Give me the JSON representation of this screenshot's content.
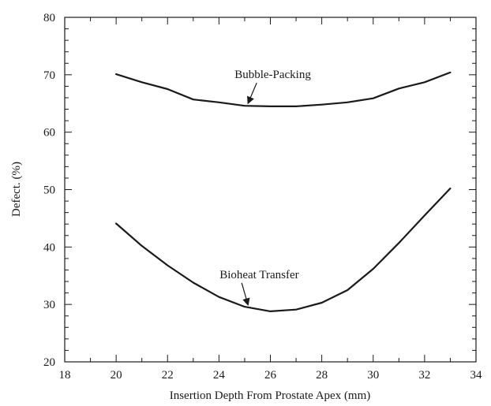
{
  "chart_data": {
    "type": "line",
    "title": "",
    "xlabel": "Insertion Depth From Prostate Apex (mm)",
    "ylabel": "Defect. (%)",
    "xlim": [
      18,
      34
    ],
    "ylim": [
      20,
      80
    ],
    "xticks": [
      18,
      20,
      22,
      24,
      26,
      28,
      30,
      32,
      34
    ],
    "yticks": [
      20,
      30,
      40,
      50,
      60,
      70,
      80
    ],
    "grid": false,
    "legend": "none",
    "series": [
      {
        "name": "Bubble-Packing",
        "x": [
          20,
          21,
          22,
          23,
          24,
          25,
          26,
          27,
          28,
          29,
          30,
          31,
          32,
          33
        ],
        "y": [
          70.1,
          68.7,
          67.5,
          65.7,
          65.2,
          64.6,
          64.5,
          64.5,
          64.8,
          65.2,
          65.9,
          67.6,
          68.7,
          70.4
        ]
      },
      {
        "name": "Bioheat Transfer",
        "x": [
          20,
          21,
          22,
          23,
          24,
          25,
          26,
          27,
          28,
          29,
          30,
          31,
          32,
          33
        ],
        "y": [
          44.1,
          40.2,
          36.8,
          33.8,
          31.3,
          29.6,
          28.8,
          29.1,
          30.3,
          32.5,
          36.2,
          40.7,
          45.5,
          50.2
        ]
      }
    ],
    "annotations": [
      {
        "text": "Bubble-Packing",
        "series": 0,
        "arrow_to": {
          "x": 25.1,
          "y": 64.6
        }
      },
      {
        "text": "Bioheat Transfer",
        "series": 1,
        "arrow_to": {
          "x": 25.1,
          "y": 29.5
        }
      }
    ]
  }
}
